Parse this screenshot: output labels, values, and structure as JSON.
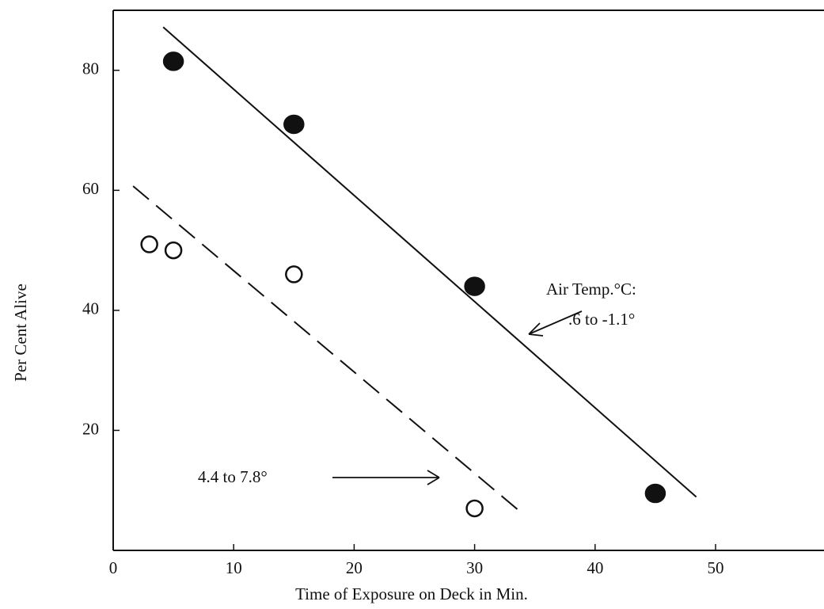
{
  "chart_data": {
    "type": "scatter",
    "xlabel": "Time of Exposure on Deck in Min.",
    "ylabel": "Per Cent Alive",
    "xlim": [
      0,
      59
    ],
    "ylim": [
      0,
      90
    ],
    "xticks": [
      0,
      10,
      20,
      30,
      40,
      50
    ],
    "yticks": [
      20,
      40,
      60,
      80
    ],
    "series": [
      {
        "marker": "filled",
        "color": "#111111",
        "x": [
          5,
          15,
          30,
          45
        ],
        "values": [
          81.5,
          71,
          44,
          9.5
        ]
      },
      {
        "marker": "open",
        "color": "#111111",
        "x": [
          3,
          5,
          15,
          30
        ],
        "values": [
          51,
          50,
          46,
          7
        ]
      }
    ],
    "fit_lines": [
      {
        "dashed": false,
        "x": [
          4.15,
          48.4
        ],
        "values": [
          87.2,
          8.9
        ]
      },
      {
        "dashed": true,
        "x": [
          1.65,
          33.7
        ],
        "values": [
          60.7,
          6.6
        ]
      }
    ],
    "annotations": [
      "Air Temp.°C:",
      ".6 to -1.1°",
      "4.4 to 7.8°"
    ]
  }
}
